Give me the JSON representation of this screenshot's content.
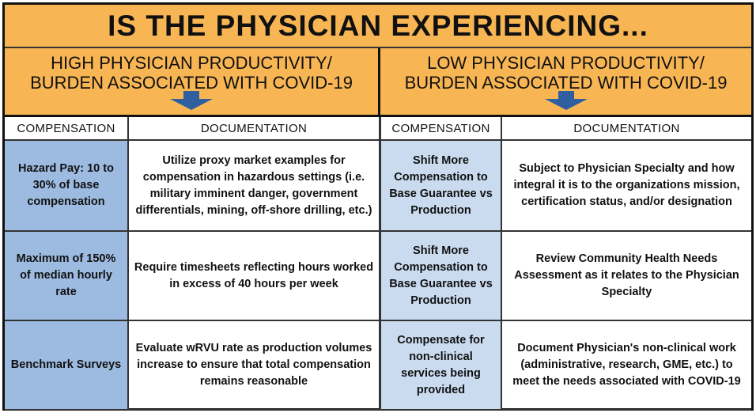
{
  "title": "IS THE PHYSICIAN EXPERIENCING...",
  "colors": {
    "header_bg": "#f8b553",
    "high_comp_bg": "#9dbbe1",
    "low_comp_bg": "#cadbf0",
    "arrow": "#2f5f9e"
  },
  "high": {
    "heading_line1": "HIGH PHYSICIAN PRODUCTIVITY/",
    "heading_line2": "BURDEN ASSOCIATED WITH COVID-19",
    "col_compensation": "COMPENSATION",
    "col_documentation": "DOCUMENTATION",
    "rows": [
      {
        "compensation": "Hazard Pay: 10 to 30% of base compensation",
        "documentation": "Utilize proxy market examples for compensation in hazardous settings (i.e. military imminent danger, government differentials, mining, off-shore drilling, etc.)"
      },
      {
        "compensation": "Maximum of 150% of median hourly rate",
        "documentation": "Require timesheets reflecting hours worked in excess of 40 hours per week"
      },
      {
        "compensation": "Benchmark Surveys",
        "documentation": "Evaluate wRVU rate as production volumes increase to ensure that total compensation remains reasonable"
      }
    ]
  },
  "low": {
    "heading_line1": "LOW PHYSICIAN PRODUCTIVITY/",
    "heading_line2": "BURDEN ASSOCIATED WITH COVID-19",
    "col_compensation": "COMPENSATION",
    "col_documentation": "DOCUMENTATION",
    "rows": [
      {
        "compensation": "Shift More Compensation to Base Guarantee vs Production",
        "documentation": "Subject to Physician Specialty and how integral it is to the organizations mission, certification status, and/or designation"
      },
      {
        "compensation": "Shift More Compensation to Base Guarantee vs Production",
        "documentation": "Review Community Health Needs Assessment as it relates to the Physician Specialty"
      },
      {
        "compensation": "Compensate for non-clinical services being provided",
        "documentation": "Document Physician's non-clinical work (administrative, research, GME, etc.) to meet the needs associated with COVID-19"
      }
    ]
  }
}
